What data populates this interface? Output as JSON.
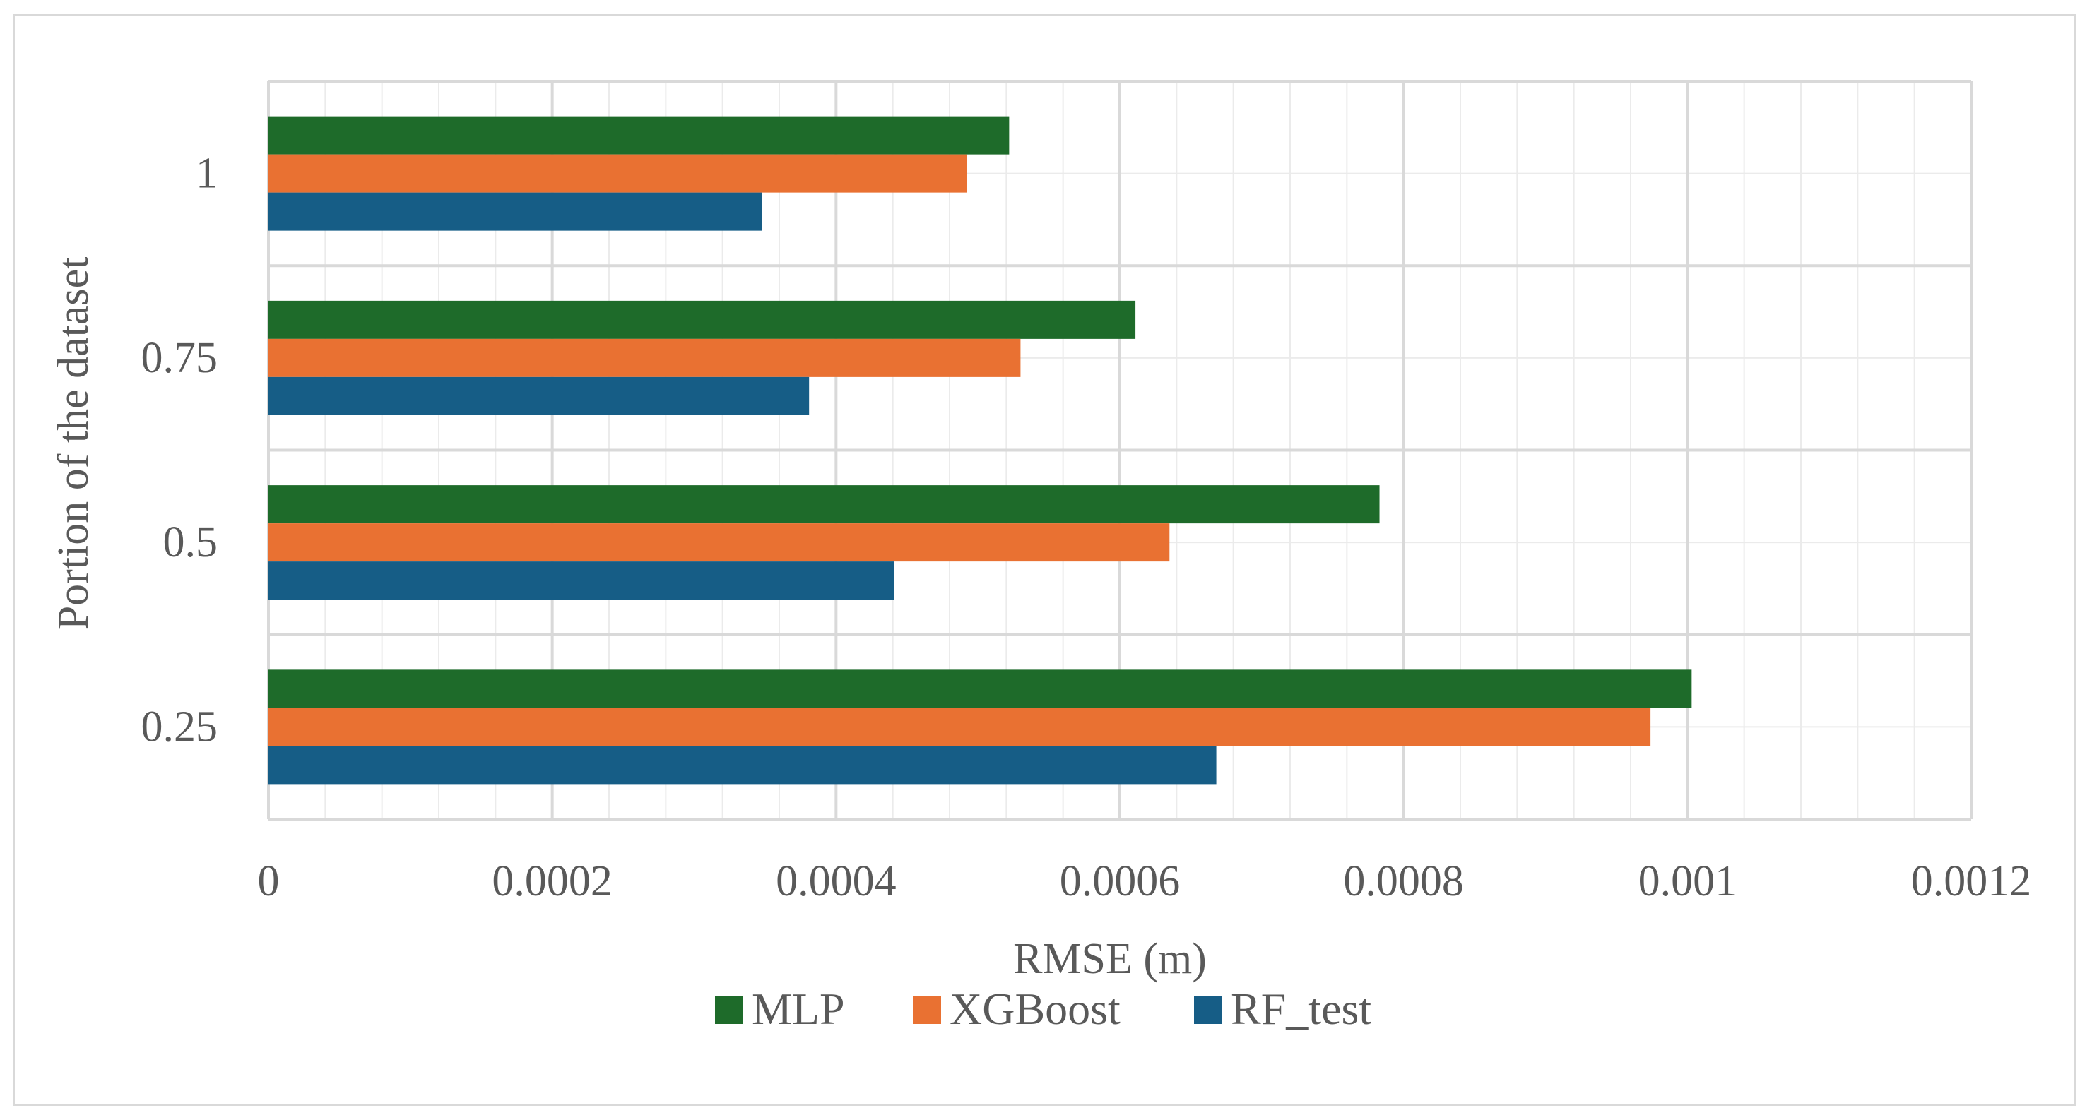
{
  "chart_data": {
    "type": "bar",
    "orientation": "horizontal",
    "categories": [
      "1",
      "0.75",
      "0.5",
      "0.25"
    ],
    "series": [
      {
        "name": "MLP",
        "color": "#1e6b2a",
        "values": [
          0.000522,
          0.000611,
          0.000783,
          0.001003
        ]
      },
      {
        "name": "XGBoost",
        "color": "#e97132",
        "values": [
          0.000492,
          0.00053,
          0.000635,
          0.000974
        ]
      },
      {
        "name": "RF_test",
        "color": "#165d86",
        "values": [
          0.000348,
          0.000381,
          0.000441,
          0.000668
        ]
      }
    ],
    "x_ticks": [
      "0",
      "0.0002",
      "0.0004",
      "0.0006",
      "0.0008",
      "0.001",
      "0.0012"
    ],
    "xlim": [
      0,
      0.0012
    ],
    "xlabel": "RMSE (m)",
    "ylabel": "Portion of the dataset",
    "grid": true,
    "legend_position": "bottom",
    "colors": {
      "grid": "#d9d9d9",
      "text": "#595959"
    }
  }
}
